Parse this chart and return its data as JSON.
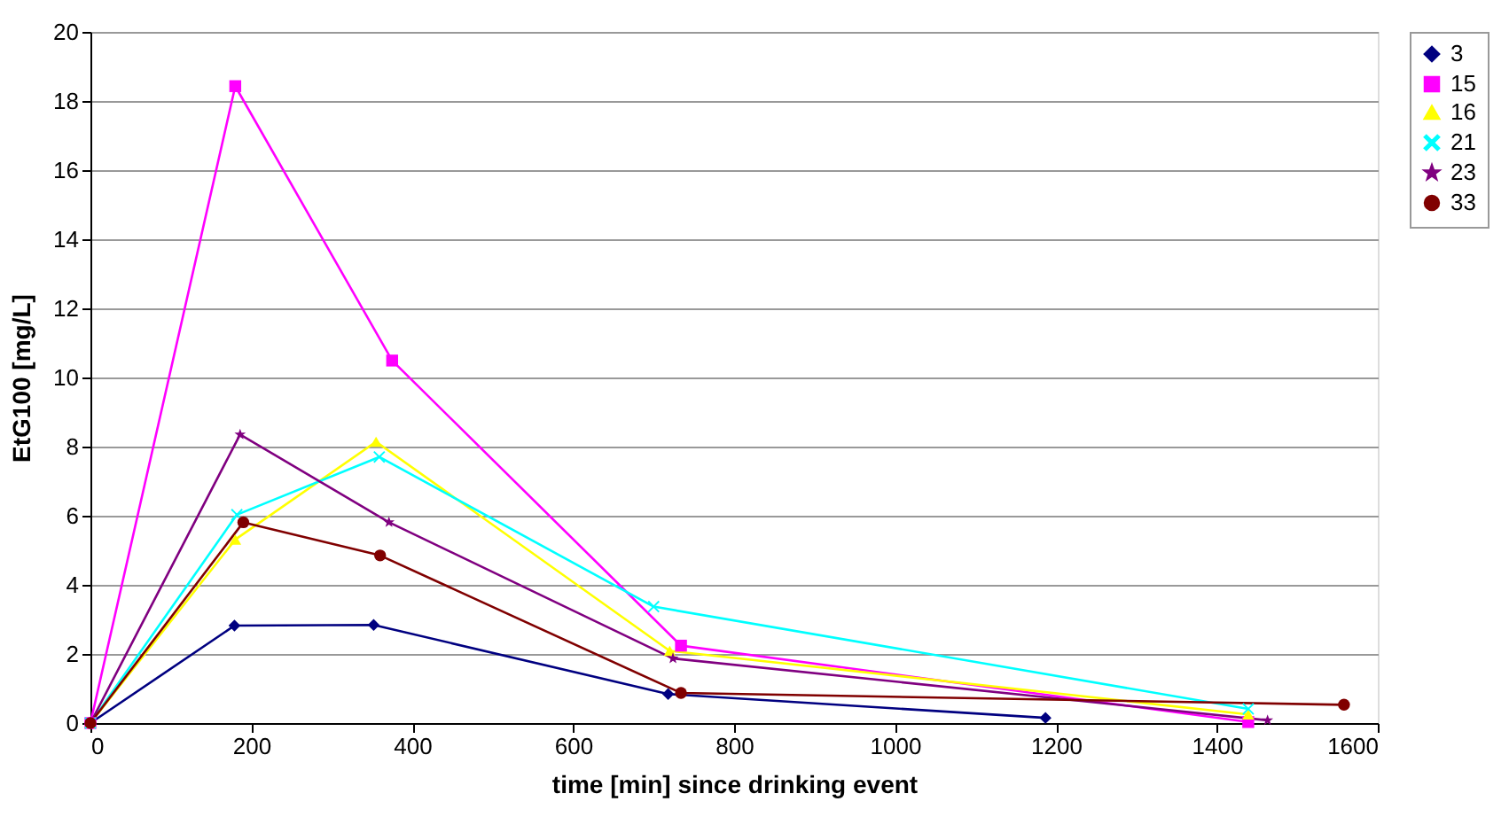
{
  "chart_data": {
    "type": "line",
    "xlabel": "time [min] since drinking event",
    "ylabel": "EtG100 [mg/L]",
    "xlim": [
      0,
      1600
    ],
    "xticks": [
      0,
      200,
      400,
      600,
      800,
      1000,
      1200,
      1400,
      1600
    ],
    "ylim": [
      0,
      20
    ],
    "yticks": [
      0,
      2,
      4,
      6,
      8,
      10,
      12,
      14,
      16,
      18,
      20
    ],
    "grid": "y",
    "legend": "right",
    "line_style": "solid",
    "series": [
      {
        "name": "3",
        "color": "#000080",
        "marker": "diamond",
        "x": [
          0,
          179,
          352,
          718,
          1187
        ],
        "values": [
          0,
          2.82,
          2.84,
          0.84,
          0.15
        ]
      },
      {
        "name": "15",
        "color": "#ff00ff",
        "marker": "square",
        "x": [
          0,
          180,
          375,
          734,
          1439
        ],
        "values": [
          0,
          18.43,
          10.49,
          2.24,
          0.03
        ]
      },
      {
        "name": "16",
        "color": "#ffff00",
        "marker": "triangle",
        "x": [
          0,
          180,
          355,
          720,
          1439
        ],
        "values": [
          0,
          5.31,
          8.14,
          2.09,
          0.25
        ]
      },
      {
        "name": "21",
        "color": "#00ffff",
        "marker": "cross",
        "x": [
          0,
          182,
          359,
          700,
          1439
        ],
        "values": [
          0,
          6.03,
          7.7,
          3.37,
          0.41
        ]
      },
      {
        "name": "23",
        "color": "#800080",
        "marker": "star",
        "x": [
          0,
          186,
          371,
          724,
          1463
        ],
        "values": [
          0,
          8.35,
          5.81,
          1.87,
          0.08
        ]
      },
      {
        "name": "33",
        "color": "#800000",
        "marker": "circle",
        "x": [
          0,
          190,
          360,
          734,
          1558
        ],
        "values": [
          0,
          5.81,
          4.85,
          0.87,
          0.53
        ]
      }
    ]
  }
}
